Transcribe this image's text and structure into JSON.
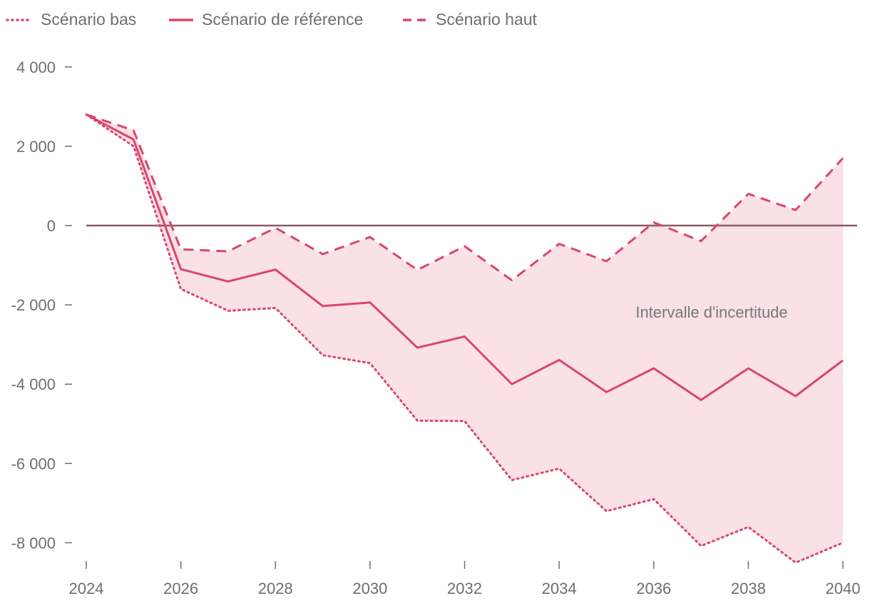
{
  "colors": {
    "series": "#d9466d",
    "band": "#f9e1e7",
    "zero_line": "#8a5a6a",
    "text": "#6e6e6e",
    "tick": "#6e6e6e"
  },
  "legend": [
    {
      "label": "Scénario bas",
      "style": "dotted"
    },
    {
      "label": "Scénario de référence",
      "style": "solid"
    },
    {
      "label": "Scénario haut",
      "style": "dashed"
    }
  ],
  "chart_data": {
    "type": "line",
    "x": [
      2024,
      2025,
      2026,
      2027,
      2028,
      2029,
      2030,
      2031,
      2032,
      2033,
      2034,
      2035,
      2036,
      2037,
      2038,
      2039,
      2040
    ],
    "series": [
      {
        "name": "Scénario bas",
        "style": "dotted",
        "values": [
          2800,
          2000,
          -1600,
          -2150,
          -2080,
          -3270,
          -3470,
          -4920,
          -4930,
          -6420,
          -6130,
          -7200,
          -6900,
          -8080,
          -7600,
          -8500,
          -8000
        ]
      },
      {
        "name": "Scénario de référence",
        "style": "solid",
        "values": [
          2800,
          2170,
          -1100,
          -1410,
          -1110,
          -2030,
          -1940,
          -3080,
          -2800,
          -4000,
          -3390,
          -4200,
          -3600,
          -4400,
          -3600,
          -4300,
          -3400
        ]
      },
      {
        "name": "Scénario haut",
        "style": "dashed",
        "values": [
          2800,
          2400,
          -600,
          -650,
          -60,
          -720,
          -290,
          -1120,
          -520,
          -1380,
          -460,
          -900,
          80,
          -390,
          800,
          390,
          1700
        ]
      }
    ],
    "band": {
      "lower": "Scénario bas",
      "upper": "Scénario haut"
    },
    "annotation": "Intervalle d'incertitude",
    "xticks": [
      "2024",
      "2026",
      "2028",
      "2030",
      "2032",
      "2034",
      "2036",
      "2038",
      "2040"
    ],
    "yticks": [
      {
        "value": 4000,
        "label": "4 000"
      },
      {
        "value": 2000,
        "label": "2 000"
      },
      {
        "value": 0,
        "label": "0"
      },
      {
        "value": -2000,
        "label": "-2 000"
      },
      {
        "value": -4000,
        "label": "-4 000"
      },
      {
        "value": -6000,
        "label": "-6 000"
      },
      {
        "value": -8000,
        "label": "-8 000"
      }
    ],
    "xlim": [
      2024,
      2040
    ],
    "ylim": [
      -8500,
      4000
    ],
    "grid": false,
    "legend_position": "top-left"
  }
}
